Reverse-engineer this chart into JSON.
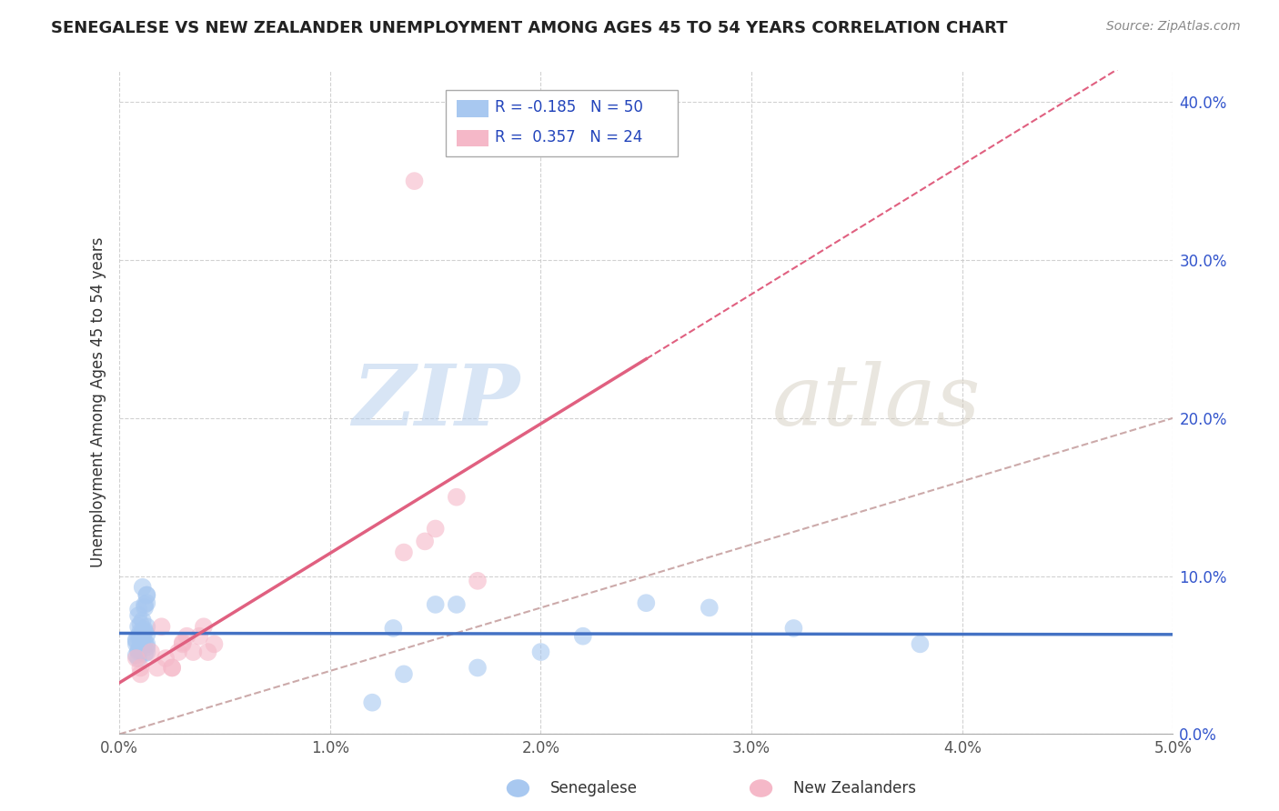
{
  "title": "SENEGALESE VS NEW ZEALANDER UNEMPLOYMENT AMONG AGES 45 TO 54 YEARS CORRELATION CHART",
  "source": "Source: ZipAtlas.com",
  "ylabel": "Unemployment Among Ages 45 to 54 years",
  "xlabel_senegalese": "Senegalese",
  "xlabel_nz": "New Zealanders",
  "xlim": [
    0.0,
    0.05
  ],
  "ylim": [
    0.0,
    0.42
  ],
  "yticks": [
    0.0,
    0.1,
    0.2,
    0.3,
    0.4
  ],
  "ytick_labels": [
    "0.0%",
    "10.0%",
    "20.0%",
    "30.0%",
    "40.0%"
  ],
  "xticks": [
    0.0,
    0.01,
    0.02,
    0.03,
    0.04,
    0.05
  ],
  "xtick_labels": [
    "0.0%",
    "1.0%",
    "2.0%",
    "3.0%",
    "4.0%",
    "5.0%"
  ],
  "R_senegalese": -0.185,
  "N_senegalese": 50,
  "R_nz": 0.357,
  "N_nz": 24,
  "color_senegalese": "#a8c8f0",
  "color_nz": "#f5b8c8",
  "color_line_senegalese": "#4472c4",
  "color_line_nz": "#e06080",
  "color_dashed_line": "#ccaaaa",
  "watermark_zip": "ZIP",
  "watermark_atlas": "atlas",
  "senegalese_x": [
    0.0008,
    0.001,
    0.0012,
    0.0008,
    0.001,
    0.0012,
    0.0009,
    0.0011,
    0.0013,
    0.001,
    0.0009,
    0.0011,
    0.0013,
    0.0008,
    0.001,
    0.0012,
    0.001,
    0.0009,
    0.0011,
    0.0013,
    0.0008,
    0.001,
    0.0012,
    0.0009,
    0.0011,
    0.0013,
    0.0009,
    0.0011,
    0.0013,
    0.001,
    0.0013,
    0.0013,
    0.0012,
    0.0012,
    0.0009,
    0.0009,
    0.0013,
    0.0011,
    0.015,
    0.016,
    0.017,
    0.02,
    0.022,
    0.025,
    0.013,
    0.028,
    0.032,
    0.038,
    0.012,
    0.0135
  ],
  "senegalese_y": [
    0.06,
    0.055,
    0.058,
    0.05,
    0.062,
    0.065,
    0.052,
    0.057,
    0.068,
    0.061,
    0.053,
    0.056,
    0.063,
    0.059,
    0.07,
    0.051,
    0.057,
    0.048,
    0.062,
    0.055,
    0.057,
    0.062,
    0.066,
    0.068,
    0.072,
    0.057,
    0.062,
    0.065,
    0.052,
    0.065,
    0.083,
    0.088,
    0.082,
    0.08,
    0.079,
    0.075,
    0.088,
    0.093,
    0.082,
    0.082,
    0.042,
    0.052,
    0.062,
    0.083,
    0.067,
    0.08,
    0.067,
    0.057,
    0.02,
    0.038
  ],
  "nz_x": [
    0.0008,
    0.001,
    0.0015,
    0.0018,
    0.002,
    0.0022,
    0.0025,
    0.0028,
    0.003,
    0.0032,
    0.001,
    0.003,
    0.0035,
    0.0038,
    0.004,
    0.0042,
    0.0045,
    0.0135,
    0.0145,
    0.015,
    0.014,
    0.016,
    0.017,
    0.0025
  ],
  "nz_y": [
    0.048,
    0.042,
    0.052,
    0.042,
    0.068,
    0.048,
    0.042,
    0.052,
    0.057,
    0.062,
    0.038,
    0.058,
    0.052,
    0.062,
    0.068,
    0.052,
    0.057,
    0.115,
    0.122,
    0.13,
    0.35,
    0.15,
    0.097,
    0.042
  ],
  "dashed_line_x": [
    0.0,
    0.05
  ],
  "dashed_line_y": [
    0.0,
    0.2
  ]
}
